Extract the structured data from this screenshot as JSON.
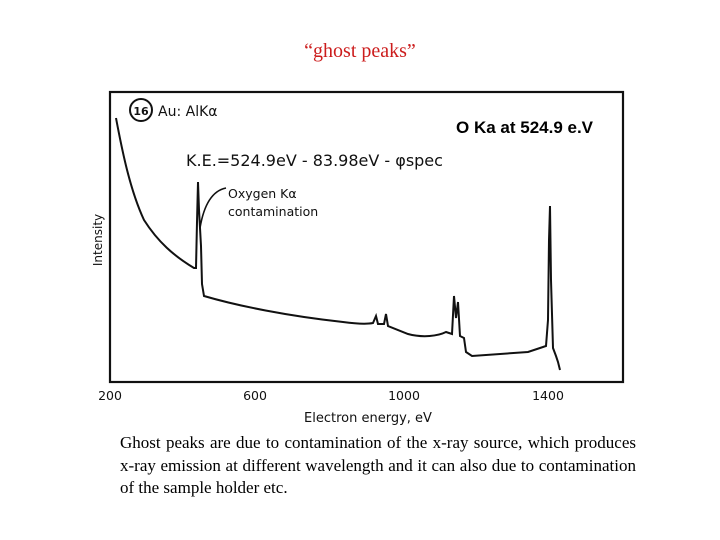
{
  "slide": {
    "title": "“ghost peaks”",
    "title_color": "#cc1d1d",
    "callout": "O Ka at 524.9 e.V",
    "caption": "Ghost peaks are due to contamination of the x-ray source, which produces x-ray emission at different wavelength and it can also due to contamination of the sample holder etc."
  },
  "figure": {
    "badge_number": "16",
    "source_label": "Au: AlKα",
    "equation": "K.E.=524.9eV - 83.98eV - φspec",
    "peak_label_line1": "Oxygen Kα",
    "peak_label_line2": "contamination",
    "ylabel": "Intensity",
    "xlabel": "Electron energy, eV",
    "x_ticks": [
      "200",
      "600",
      "1000",
      "1400"
    ]
  }
}
